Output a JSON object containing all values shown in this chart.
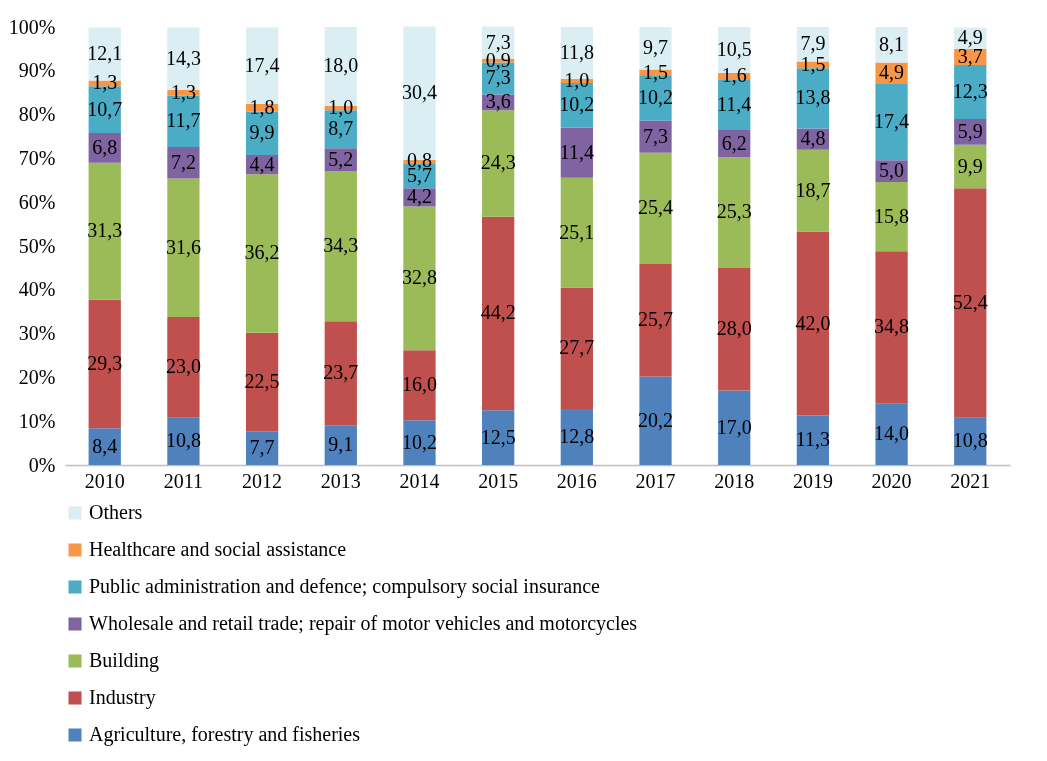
{
  "chart_data": {
    "type": "bar",
    "stacked": true,
    "categories": [
      "2010",
      "2011",
      "2012",
      "2013",
      "2014",
      "2015",
      "2016",
      "2017",
      "2018",
      "2019",
      "2020",
      "2021"
    ],
    "ylim": [
      0,
      100
    ],
    "yticks": [
      {
        "value": 0,
        "label": "0%"
      },
      {
        "value": 10,
        "label": "10%"
      },
      {
        "value": 20,
        "label": "20%"
      },
      {
        "value": 30,
        "label": "30%"
      },
      {
        "value": 40,
        "label": "40%"
      },
      {
        "value": 50,
        "label": "50%"
      },
      {
        "value": 60,
        "label": "60%"
      },
      {
        "value": 70,
        "label": "70%"
      },
      {
        "value": 80,
        "label": "80%"
      },
      {
        "value": 90,
        "label": "90%"
      },
      {
        "value": 100,
        "label": "100%"
      }
    ],
    "grid": false,
    "legend": "bottom",
    "series": [
      {
        "name": "Agriculture, forestry and fisheries",
        "color": "#4f81bd",
        "values": [
          8.4,
          10.8,
          7.7,
          9.1,
          10.2,
          12.5,
          12.8,
          20.2,
          17.0,
          11.3,
          14.0,
          10.8
        ],
        "value_labels": [
          "8,4",
          "10,8",
          "7,7",
          "9,1",
          "10,2",
          "12,5",
          "12,8",
          "20,2",
          "17,0",
          "11,3",
          "14,0",
          "10,8"
        ]
      },
      {
        "name": "Industry",
        "color": "#c0504d",
        "values": [
          29.3,
          23.0,
          22.5,
          23.7,
          16.0,
          44.2,
          27.7,
          25.7,
          28.0,
          42.0,
          34.8,
          52.4
        ],
        "value_labels": [
          "29,3",
          "23,0",
          "22,5",
          "23,7",
          "16,0",
          "44,2",
          "27,7",
          "25,7",
          "28,0",
          "42,0",
          "34,8",
          "52,4"
        ]
      },
      {
        "name": "Building",
        "color": "#9bbb59",
        "values": [
          31.3,
          31.6,
          36.2,
          34.3,
          32.8,
          24.3,
          25.1,
          25.4,
          25.3,
          18.7,
          15.8,
          9.9
        ],
        "value_labels": [
          "31,3",
          "31,6",
          "36,2",
          "34,3",
          "32,8",
          "24,3",
          "25,1",
          "25,4",
          "25,3",
          "18,7",
          "15,8",
          "9,9"
        ]
      },
      {
        "name": "Wholesale and retail trade; repair of motor vehicles and motorcycles",
        "color": "#8064a2",
        "values": [
          6.8,
          7.2,
          4.4,
          5.2,
          4.2,
          3.6,
          11.4,
          7.3,
          6.2,
          4.8,
          5.0,
          5.9
        ],
        "value_labels": [
          "6,8",
          "7,2",
          "4,4",
          "5,2",
          "4,2",
          "3,6",
          "11,4",
          "7,3",
          "6,2",
          "4,8",
          "5,0",
          "5,9"
        ]
      },
      {
        "name": "Public administration and defence; compulsory social insurance",
        "color": "#4bacc6",
        "values": [
          10.7,
          11.7,
          9.9,
          8.7,
          5.7,
          7.3,
          10.2,
          10.2,
          11.4,
          13.8,
          17.4,
          12.3
        ],
        "value_labels": [
          "10,7",
          "11,7",
          "9,9",
          "8,7",
          "5,7",
          "7,3",
          "10,2",
          "10,2",
          "11,4",
          "13,8",
          "17,4",
          "12,3"
        ]
      },
      {
        "name": "Healthcare and social assistance",
        "color": "#f79646",
        "values": [
          1.3,
          1.3,
          1.8,
          1.0,
          0.8,
          0.9,
          1.0,
          1.5,
          1.6,
          1.5,
          4.9,
          3.7
        ],
        "value_labels": [
          "1,3",
          "1,3",
          "1,8",
          "1,0",
          "0,8",
          "0,9",
          "1,0",
          "1,5",
          "1,6",
          "1,5",
          "4,9",
          "3,7"
        ]
      },
      {
        "name": "Others",
        "color": "#dbeef4",
        "values": [
          12.1,
          14.3,
          17.4,
          18.0,
          30.4,
          7.3,
          11.8,
          9.7,
          10.5,
          7.9,
          8.1,
          4.9
        ],
        "value_labels": [
          "12,1",
          "14,3",
          "17,4",
          "18,0",
          "30,4",
          "7,3",
          "11,8",
          "9,7",
          "10,5",
          "7,9",
          "8,1",
          "4,9"
        ]
      }
    ]
  }
}
